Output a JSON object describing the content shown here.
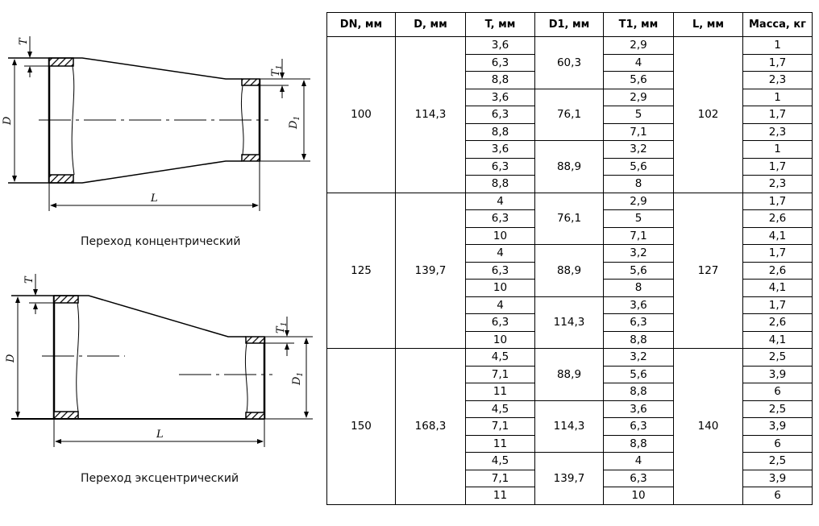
{
  "drawings": {
    "concentric": {
      "caption": "Переход концентрический",
      "labels": {
        "D": "D",
        "D1": "D",
        "D1_sub": "1",
        "L": "L",
        "T": "T",
        "T1": "T",
        "T1_sub": "1"
      }
    },
    "eccentric": {
      "caption": "Переход эксцентрический",
      "labels": {
        "D": "D",
        "D1": "D",
        "D1_sub": "1",
        "L": "L",
        "T": "T",
        "T1": "T",
        "T1_sub": "1"
      }
    }
  },
  "table": {
    "headers": [
      "DN, мм",
      "D, мм",
      "T, мм",
      "D1, мм",
      "T1, мм",
      "L, мм",
      "Масса, кг"
    ],
    "groups": [
      {
        "DN": "100",
        "D": "114,3",
        "L": "102",
        "subgroups": [
          {
            "D1": "60,3",
            "rows": [
              {
                "T": "3,6",
                "T1": "2,9",
                "mass": "1"
              },
              {
                "T": "6,3",
                "T1": "4",
                "mass": "1,7"
              },
              {
                "T": "8,8",
                "T1": "5,6",
                "mass": "2,3"
              }
            ]
          },
          {
            "D1": "76,1",
            "rows": [
              {
                "T": "3,6",
                "T1": "2,9",
                "mass": "1"
              },
              {
                "T": "6,3",
                "T1": "5",
                "mass": "1,7"
              },
              {
                "T": "8,8",
                "T1": "7,1",
                "mass": "2,3"
              }
            ]
          },
          {
            "D1": "88,9",
            "rows": [
              {
                "T": "3,6",
                "T1": "3,2",
                "mass": "1"
              },
              {
                "T": "6,3",
                "T1": "5,6",
                "mass": "1,7"
              },
              {
                "T": "8,8",
                "T1": "8",
                "mass": "2,3"
              }
            ]
          }
        ]
      },
      {
        "DN": "125",
        "D": "139,7",
        "L": "127",
        "subgroups": [
          {
            "D1": "76,1",
            "rows": [
              {
                "T": "4",
                "T1": "2,9",
                "mass": "1,7"
              },
              {
                "T": "6,3",
                "T1": "5",
                "mass": "2,6"
              },
              {
                "T": "10",
                "T1": "7,1",
                "mass": "4,1"
              }
            ]
          },
          {
            "D1": "88,9",
            "rows": [
              {
                "T": "4",
                "T1": "3,2",
                "mass": "1,7"
              },
              {
                "T": "6,3",
                "T1": "5,6",
                "mass": "2,6"
              },
              {
                "T": "10",
                "T1": "8",
                "mass": "4,1"
              }
            ]
          },
          {
            "D1": "114,3",
            "rows": [
              {
                "T": "4",
                "T1": "3,6",
                "mass": "1,7"
              },
              {
                "T": "6,3",
                "T1": "6,3",
                "mass": "2,6"
              },
              {
                "T": "10",
                "T1": "8,8",
                "mass": "4,1"
              }
            ]
          }
        ]
      },
      {
        "DN": "150",
        "D": "168,3",
        "L": "140",
        "subgroups": [
          {
            "D1": "88,9",
            "rows": [
              {
                "T": "4,5",
                "T1": "3,2",
                "mass": "2,5"
              },
              {
                "T": "7,1",
                "T1": "5,6",
                "mass": "3,9"
              },
              {
                "T": "11",
                "T1": "8,8",
                "mass": "6"
              }
            ]
          },
          {
            "D1": "114,3",
            "rows": [
              {
                "T": "4,5",
                "T1": "3,6",
                "mass": "2,5"
              },
              {
                "T": "7,1",
                "T1": "6,3",
                "mass": "3,9"
              },
              {
                "T": "11",
                "T1": "8,8",
                "mass": "6"
              }
            ]
          },
          {
            "D1": "139,7",
            "rows": [
              {
                "T": "4,5",
                "T1": "4",
                "mass": "2,5"
              },
              {
                "T": "7,1",
                "T1": "6,3",
                "mass": "3,9"
              },
              {
                "T": "11",
                "T1": "10",
                "mass": "6"
              }
            ]
          }
        ]
      }
    ]
  }
}
